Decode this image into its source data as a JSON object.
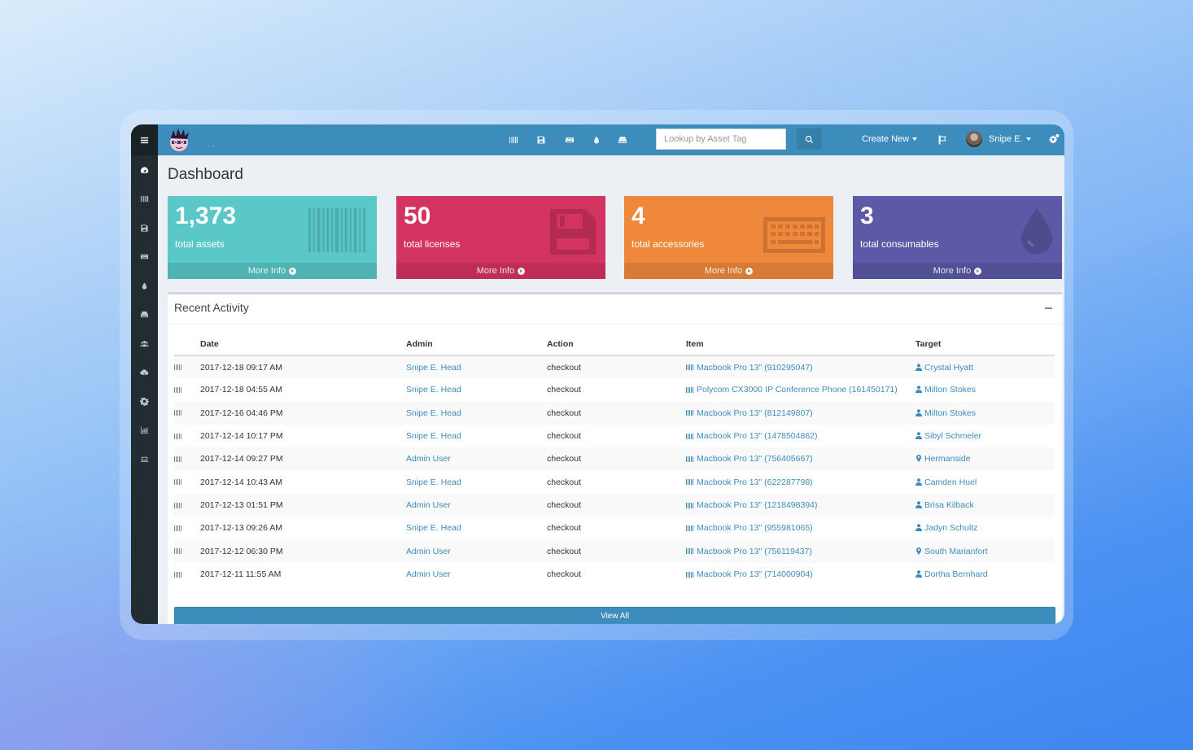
{
  "search": {
    "placeholder": "Lookup by Asset Tag"
  },
  "topbar": {
    "logo_text": ".",
    "create_new": "Create New",
    "user_name": "Snipe E.",
    "nav_icons": [
      "barcode-icon",
      "save-icon",
      "keyboard-icon",
      "tint-icon",
      "hdd-icon"
    ]
  },
  "sidebar": {
    "icons": [
      "dashboard-icon",
      "barcode-icon",
      "save-icon",
      "keyboard-icon",
      "tint-icon",
      "hdd-icon",
      "users-icon",
      "cloud-download-icon",
      "cog-icon",
      "bar-chart-icon",
      "laptop-icon"
    ]
  },
  "page": {
    "title": "Dashboard"
  },
  "boxes": [
    {
      "number": "1,373",
      "label": "total assets",
      "more": "More Info",
      "color": "#5ac8c8",
      "icon": "barcode-icon"
    },
    {
      "number": "50",
      "label": "total licenses",
      "more": "More Info",
      "color": "#d33360",
      "icon": "save-icon"
    },
    {
      "number": "4",
      "label": "total accessories",
      "more": "More Info",
      "color": "#f0883c",
      "icon": "keyboard-icon"
    },
    {
      "number": "3",
      "label": "total consumables",
      "more": "More Info",
      "color": "#5c5aa6",
      "icon": "tint-icon"
    }
  ],
  "activity": {
    "title": "Recent Activity",
    "columns": [
      "",
      "Date",
      "Admin",
      "Action",
      "Item",
      "Target"
    ],
    "rows": [
      {
        "date": "2017-12-18 09:17 AM",
        "admin": "Snipe E. Head",
        "action": "checkout",
        "item": "Macbook Pro 13\" (910295047)",
        "target": "Crystal Hyatt",
        "target_type": "user"
      },
      {
        "date": "2017-12-18 04:55 AM",
        "admin": "Snipe E. Head",
        "action": "checkout",
        "item": "Polycom CX3000 IP Conference Phone (161450171)",
        "target": "Milton Stokes",
        "target_type": "user"
      },
      {
        "date": "2017-12-16 04:46 PM",
        "admin": "Snipe E. Head",
        "action": "checkout",
        "item": "Macbook Pro 13\" (812149807)",
        "target": "Milton Stokes",
        "target_type": "user"
      },
      {
        "date": "2017-12-14 10:17 PM",
        "admin": "Snipe E. Head",
        "action": "checkout",
        "item": "Macbook Pro 13\" (1478504862)",
        "target": "Sibyl Schmeler",
        "target_type": "user"
      },
      {
        "date": "2017-12-14 09:27 PM",
        "admin": "Admin User",
        "action": "checkout",
        "item": "Macbook Pro 13\" (756405667)",
        "target": "Hermanside",
        "target_type": "location"
      },
      {
        "date": "2017-12-14 10:43 AM",
        "admin": "Snipe E. Head",
        "action": "checkout",
        "item": "Macbook Pro 13\" (622287798)",
        "target": "Camden Huel",
        "target_type": "user"
      },
      {
        "date": "2017-12-13 01:51 PM",
        "admin": "Admin User",
        "action": "checkout",
        "item": "Macbook Pro 13\" (1218498394)",
        "target": "Brisa Kilback",
        "target_type": "user"
      },
      {
        "date": "2017-12-13 09:26 AM",
        "admin": "Snipe E. Head",
        "action": "checkout",
        "item": "Macbook Pro 13\" (955981065)",
        "target": "Jadyn Schultz",
        "target_type": "user"
      },
      {
        "date": "2017-12-12 06:30 PM",
        "admin": "Admin User",
        "action": "checkout",
        "item": "Macbook Pro 13\" (756119437)",
        "target": "South Marianfort",
        "target_type": "location"
      },
      {
        "date": "2017-12-11 11:55 AM",
        "admin": "Admin User",
        "action": "checkout",
        "item": "Macbook Pro 13\" (714000904)",
        "target": "Dortha Bernhard",
        "target_type": "user"
      }
    ],
    "view_all": "View All"
  }
}
